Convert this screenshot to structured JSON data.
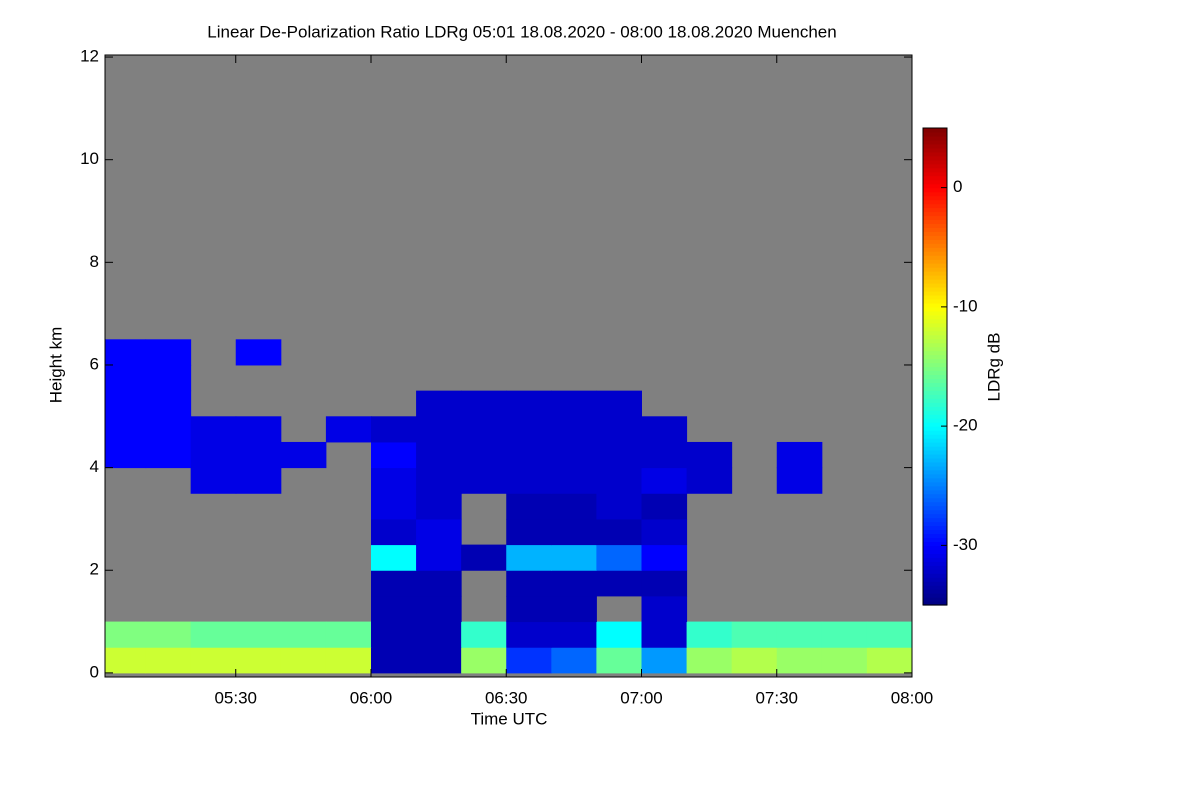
{
  "chart_data": {
    "type": "heatmap",
    "title": "Linear De-Polarization Ratio LDRg   05:01 18.08.2020 - 08:00 18.08.2020 Muenchen",
    "x_label": "Time UTC",
    "y_label": "Height km",
    "colorbar_label": "LDRg dB",
    "background_color": "#808080",
    "colormap": "jet",
    "xlim": [
      5.0167,
      8.0
    ],
    "xticks": [
      {
        "value": 5.5,
        "label": "05:30"
      },
      {
        "value": 6.0,
        "label": "06:00"
      },
      {
        "value": 6.5,
        "label": "06:30"
      },
      {
        "value": 7.0,
        "label": "07:00"
      },
      {
        "value": 7.5,
        "label": "07:30"
      },
      {
        "value": 8.0,
        "label": "08:00"
      }
    ],
    "ylim": [
      -0.08,
      12.04
    ],
    "yticks": [
      0,
      2,
      4,
      6,
      8,
      10,
      12
    ],
    "zlim": [
      -35,
      5
    ],
    "zticks": [
      -30,
      -20,
      -10,
      0
    ],
    "x_bins": [
      5.0,
      5.1667,
      5.3333,
      5.5,
      5.6667,
      5.8333,
      6.0,
      6.1667,
      6.3333,
      6.5,
      6.6667,
      6.8333,
      7.0,
      7.1667,
      7.3333,
      7.5,
      7.6667,
      7.8333,
      8.0
    ],
    "y_bins": [
      0,
      0.5,
      1,
      1.5,
      2,
      2.5,
      3,
      3.5,
      4,
      4.5,
      5,
      5.5,
      6,
      6.5
    ],
    "z": [
      [
        -12,
        -12,
        -12,
        -12,
        -12,
        -12,
        -33,
        -33,
        -14,
        -28,
        -26,
        -16,
        -24,
        -14,
        -13,
        -14,
        -14,
        -13
      ],
      [
        -15,
        -15,
        -16,
        -16,
        -16,
        -16,
        -33,
        -33,
        -18,
        -32,
        -32,
        -20,
        -32,
        -18,
        -17,
        -17,
        -17,
        -17
      ],
      [
        null,
        null,
        null,
        null,
        null,
        null,
        -33,
        -33,
        null,
        -33,
        -33,
        null,
        -32,
        null,
        null,
        null,
        null,
        null
      ],
      [
        null,
        null,
        null,
        null,
        null,
        null,
        -33,
        -33,
        null,
        -33,
        -33,
        -33,
        -33,
        null,
        null,
        null,
        null,
        null
      ],
      [
        null,
        null,
        null,
        null,
        null,
        null,
        -20,
        -31,
        -33,
        -23,
        -23,
        -26,
        -30,
        null,
        null,
        null,
        null,
        null
      ],
      [
        null,
        null,
        null,
        null,
        null,
        null,
        -32,
        -31,
        null,
        -33,
        -33,
        -33,
        -32,
        null,
        null,
        null,
        null,
        null
      ],
      [
        null,
        null,
        null,
        null,
        null,
        null,
        -31,
        -32,
        null,
        -33,
        -33,
        -32,
        -33,
        null,
        null,
        null,
        null,
        null
      ],
      [
        null,
        null,
        -31,
        -31,
        null,
        null,
        -31,
        -32,
        -32,
        -32,
        -32,
        -32,
        -31,
        -32,
        null,
        -31,
        null,
        null
      ],
      [
        -30,
        -30,
        -31,
        -31,
        -31,
        null,
        -30,
        -32,
        -32,
        -32,
        -32,
        -32,
        -32,
        -32,
        null,
        -31,
        null,
        null
      ],
      [
        -30,
        -30,
        -31,
        -31,
        null,
        -31,
        -32,
        -32,
        -32,
        -32,
        -32,
        -32,
        -32,
        null,
        null,
        null,
        null,
        null
      ],
      [
        -30,
        -30,
        null,
        null,
        null,
        null,
        null,
        -32,
        -32,
        -32,
        -32,
        -32,
        null,
        null,
        null,
        null,
        null,
        null
      ],
      [
        -30,
        -30,
        null,
        null,
        null,
        null,
        null,
        null,
        null,
        null,
        null,
        null,
        null,
        null,
        null,
        null,
        null,
        null
      ],
      [
        -30,
        -30,
        null,
        -30,
        null,
        null,
        null,
        null,
        null,
        null,
        null,
        null,
        null,
        null,
        null,
        null,
        null,
        null
      ]
    ]
  }
}
